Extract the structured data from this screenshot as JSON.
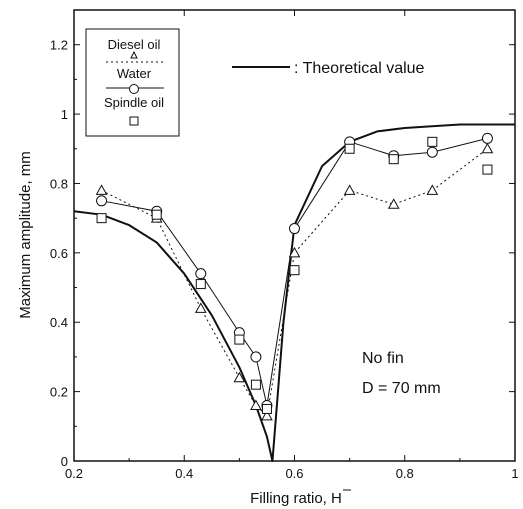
{
  "chart_data": {
    "type": "line",
    "title": "",
    "xlabel": "Filling ratio, H",
    "ylabel": "Maximum amplitude, mm",
    "xlim": [
      0.2,
      1.0
    ],
    "ylim": [
      0,
      1.3
    ],
    "xticks": [
      "0.2",
      "0.4",
      "0.6",
      "0.8",
      "1"
    ],
    "xtick_values": [
      0.2,
      0.4,
      0.6,
      0.8,
      1.0
    ],
    "yticks": [
      "0",
      "0.2",
      "0.4",
      "0.6",
      "0.8",
      "1",
      "1.2"
    ],
    "ytick_values": [
      0,
      0.2,
      0.4,
      0.6,
      0.8,
      1.0,
      1.2
    ],
    "grid": false,
    "legend": {
      "placement": "top-left",
      "entries": [
        "Diesel oil",
        "Water",
        "Spindle oil"
      ],
      "theory_label": ": Theoretical value"
    },
    "annotations": [
      "No fin",
      "D = 70 mm"
    ],
    "series": [
      {
        "name": "Diesel oil",
        "marker": "triangle",
        "line": "dotted",
        "x": [
          0.25,
          0.35,
          0.43,
          0.5,
          0.53,
          0.55,
          0.6,
          0.7,
          0.78,
          0.85,
          0.95
        ],
        "y": [
          0.78,
          0.7,
          0.44,
          0.24,
          0.16,
          0.13,
          0.6,
          0.78,
          0.74,
          0.78,
          0.9
        ]
      },
      {
        "name": "Water",
        "marker": "circle",
        "line": "solid",
        "x": [
          0.25,
          0.35,
          0.43,
          0.5,
          0.53,
          0.55,
          0.6,
          0.7,
          0.78,
          0.85,
          0.95
        ],
        "y": [
          0.75,
          0.72,
          0.54,
          0.37,
          0.3,
          0.16,
          0.67,
          0.92,
          0.88,
          0.89,
          0.93
        ]
      },
      {
        "name": "Spindle oil",
        "marker": "square",
        "line": "none",
        "x": [
          0.25,
          0.35,
          0.43,
          0.5,
          0.53,
          0.55,
          0.6,
          0.7,
          0.78,
          0.85,
          0.95
        ],
        "y": [
          0.7,
          0.71,
          0.51,
          0.35,
          0.22,
          0.15,
          0.55,
          0.9,
          0.87,
          0.92,
          0.84
        ]
      },
      {
        "name": "Theoretical value",
        "marker": "none",
        "line": "solid-thick",
        "x": [
          0.2,
          0.25,
          0.3,
          0.35,
          0.4,
          0.45,
          0.5,
          0.53,
          0.55,
          0.56,
          0.58,
          0.6,
          0.65,
          0.7,
          0.75,
          0.8,
          0.9,
          1.0
        ],
        "y": [
          0.72,
          0.71,
          0.68,
          0.63,
          0.54,
          0.42,
          0.27,
          0.16,
          0.07,
          0.0,
          0.4,
          0.68,
          0.85,
          0.92,
          0.95,
          0.96,
          0.97,
          0.97
        ]
      }
    ]
  }
}
